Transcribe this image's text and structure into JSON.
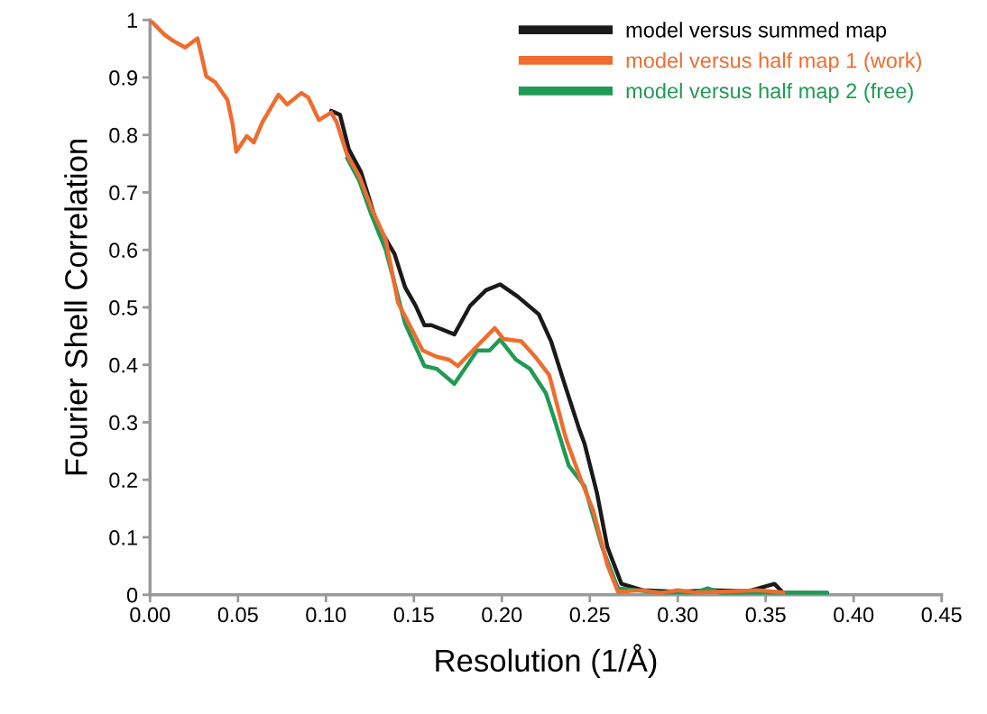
{
  "chart_data": {
    "type": "line",
    "xlabel": "Resolution (1/Å)",
    "ylabel": "Fourier Shell Correlation",
    "xlim": [
      0,
      0.45
    ],
    "ylim": [
      0,
      1
    ],
    "xticks": [
      {
        "value": 0,
        "label": "0.00"
      },
      {
        "value": 0.05,
        "label": "0.05"
      },
      {
        "value": 0.1,
        "label": "0.10"
      },
      {
        "value": 0.15,
        "label": "0.15"
      },
      {
        "value": 0.2,
        "label": "0.20"
      },
      {
        "value": 0.25,
        "label": "0.25"
      },
      {
        "value": 0.3,
        "label": "0.30"
      },
      {
        "value": 0.35,
        "label": "0.35"
      },
      {
        "value": 0.4,
        "label": "0.40"
      },
      {
        "value": 0.45,
        "label": "0.45"
      }
    ],
    "yticks": [
      0,
      0.1,
      0.2,
      0.3,
      0.4,
      0.5,
      0.6,
      0.7,
      0.8,
      0.9,
      1
    ],
    "grid": false,
    "legend": "top right",
    "marker": "none",
    "line_style": "solid",
    "series": [
      {
        "name": "model versus summed map",
        "color": "#1a1a1a",
        "x": [
          0.103,
          0.108,
          0.113,
          0.12,
          0.129,
          0.139,
          0.145,
          0.151,
          0.156,
          0.16,
          0.173,
          0.182,
          0.191,
          0.199,
          0.209,
          0.221,
          0.228,
          0.235,
          0.244,
          0.247,
          0.254,
          0.26,
          0.268,
          0.28,
          0.3,
          0.32,
          0.34,
          0.355,
          0.36,
          0.385
        ],
        "values": [
          0.842,
          0.835,
          0.775,
          0.735,
          0.645,
          0.593,
          0.535,
          0.503,
          0.469,
          0.469,
          0.453,
          0.503,
          0.53,
          0.54,
          0.519,
          0.488,
          0.441,
          0.373,
          0.288,
          0.263,
          0.178,
          0.083,
          0.019,
          0.008,
          0.005,
          0.008,
          0.006,
          0.019,
          0.003,
          0.003
        ]
      },
      {
        "name": "model versus half map 1 (work)",
        "color": "#ef6c2f",
        "x": [
          0,
          0.008,
          0.013,
          0.02,
          0.027,
          0.032,
          0.037,
          0.044,
          0.047,
          0.049,
          0.055,
          0.059,
          0.064,
          0.073,
          0.078,
          0.086,
          0.09,
          0.096,
          0.103,
          0.106,
          0.112,
          0.119,
          0.126,
          0.134,
          0.141,
          0.155,
          0.163,
          0.17,
          0.175,
          0.187,
          0.196,
          0.201,
          0.211,
          0.219,
          0.227,
          0.235,
          0.237,
          0.245,
          0.252,
          0.26,
          0.266,
          0.28,
          0.29,
          0.3,
          0.31,
          0.33,
          0.345,
          0.36
        ],
        "values": [
          1.0,
          0.975,
          0.964,
          0.952,
          0.968,
          0.902,
          0.892,
          0.861,
          0.818,
          0.771,
          0.798,
          0.787,
          0.823,
          0.87,
          0.853,
          0.873,
          0.865,
          0.826,
          0.839,
          0.823,
          0.766,
          0.728,
          0.672,
          0.618,
          0.508,
          0.425,
          0.414,
          0.409,
          0.398,
          0.436,
          0.464,
          0.445,
          0.441,
          0.414,
          0.382,
          0.288,
          0.267,
          0.2,
          0.146,
          0.052,
          0.005,
          0.008,
          0.003,
          0.008,
          0.004,
          0.006,
          0.008,
          0.004
        ]
      },
      {
        "name": "model versus half map 2 (free)",
        "color": "#1f9a55",
        "x": [
          0.112,
          0.119,
          0.126,
          0.134,
          0.145,
          0.156,
          0.163,
          0.173,
          0.186,
          0.193,
          0.199,
          0.208,
          0.216,
          0.225,
          0.23,
          0.238,
          0.247,
          0.257,
          0.266,
          0.29,
          0.31,
          0.317,
          0.325,
          0.35,
          0.385
        ],
        "values": [
          0.76,
          0.72,
          0.66,
          0.6,
          0.472,
          0.398,
          0.393,
          0.367,
          0.425,
          0.425,
          0.444,
          0.409,
          0.393,
          0.351,
          0.304,
          0.225,
          0.189,
          0.083,
          0.011,
          0.004,
          0.004,
          0.011,
          0.003,
          0.004,
          0.003
        ]
      }
    ]
  }
}
